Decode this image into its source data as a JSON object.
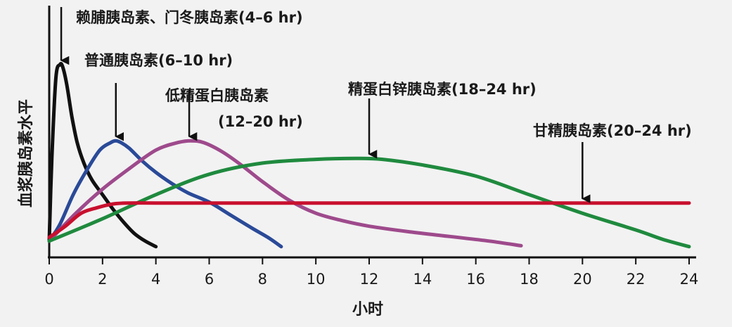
{
  "chart_data": {
    "type": "line",
    "title": "",
    "xlabel": "小时",
    "ylabel": "血浆胰岛素水平",
    "xlim": [
      0,
      24
    ],
    "xticks": [
      0,
      2,
      4,
      6,
      8,
      10,
      12,
      14,
      16,
      18,
      20,
      22,
      24
    ],
    "ylim": [
      0,
      1
    ],
    "grid": false,
    "series": [
      {
        "name": "赖脯胰岛素、门冬胰岛素(4-6 hr)",
        "color": "#111111",
        "x": [
          0,
          0.1,
          0.25,
          0.4,
          0.5,
          0.65,
          0.85,
          1.05,
          1.3,
          1.6,
          2.0,
          2.4,
          2.8,
          3.2,
          3.6,
          4.0
        ],
        "y": [
          0.05,
          0.5,
          0.93,
          1.0,
          0.99,
          0.9,
          0.72,
          0.58,
          0.47,
          0.38,
          0.3,
          0.22,
          0.15,
          0.09,
          0.05,
          0.02
        ]
      },
      {
        "name": "普通胰岛素(6-10 hr)",
        "color": "#2a4a98",
        "x": [
          0,
          0.4,
          0.9,
          1.4,
          1.9,
          2.3,
          2.5,
          2.7,
          3.0,
          3.5,
          4.0,
          4.6,
          5.2,
          6.0,
          6.8,
          7.6,
          8.2,
          8.7
        ],
        "y": [
          0.05,
          0.14,
          0.3,
          0.43,
          0.54,
          0.58,
          0.59,
          0.58,
          0.55,
          0.48,
          0.42,
          0.36,
          0.31,
          0.26,
          0.19,
          0.12,
          0.07,
          0.02
        ]
      },
      {
        "name": "低精蛋白胰岛素(12-20 hr)",
        "color": "#9e4a8c",
        "x": [
          0,
          1.0,
          2.0,
          3.0,
          4.0,
          4.8,
          5.3,
          5.8,
          6.5,
          7.2,
          8.0,
          9.0,
          10.0,
          11.0,
          12.0,
          13.5,
          15.0,
          16.5,
          17.7
        ],
        "y": [
          0.05,
          0.2,
          0.33,
          0.44,
          0.54,
          0.58,
          0.59,
          0.58,
          0.53,
          0.46,
          0.37,
          0.27,
          0.2,
          0.16,
          0.13,
          0.1,
          0.075,
          0.05,
          0.025
        ]
      },
      {
        "name": "精蛋白锌胰岛素(18-24 hr)",
        "color": "#1f8a3e",
        "x": [
          0,
          2,
          4,
          6,
          8,
          10,
          11.5,
          12.5,
          14,
          16,
          18,
          20,
          22,
          23,
          24
        ],
        "y": [
          0.05,
          0.17,
          0.3,
          0.41,
          0.47,
          0.49,
          0.495,
          0.49,
          0.46,
          0.4,
          0.3,
          0.2,
          0.11,
          0.06,
          0.02
        ]
      },
      {
        "name": "甘精胰岛素(20-24 hr)",
        "color": "#c8102e",
        "x": [
          0,
          0.6,
          1.2,
          1.8,
          2.4,
          3.0,
          4,
          6,
          10,
          14,
          18,
          22,
          24
        ],
        "y": [
          0.07,
          0.13,
          0.2,
          0.23,
          0.25,
          0.255,
          0.255,
          0.255,
          0.255,
          0.255,
          0.255,
          0.255,
          0.255
        ]
      }
    ],
    "annotations": [
      {
        "id": "a0",
        "line1": "赖脯胰岛素、门冬胰岛素(4–6 hr)",
        "line2": "",
        "arrow_x": 0.45,
        "arrow_to_y": 1.0
      },
      {
        "id": "a1",
        "line1": "普通胰岛素(6–10 hr)",
        "line2": "",
        "arrow_x": 2.5,
        "arrow_to_y": 0.59
      },
      {
        "id": "a2",
        "line1": "低精蛋白胰岛素",
        "line2": "(12–20 hr)",
        "arrow_x": 5.25,
        "arrow_to_y": 0.59
      },
      {
        "id": "a3",
        "line1": "精蛋白锌胰岛素(18–24 hr)",
        "line2": "",
        "arrow_x": 12.0,
        "arrow_to_y": 0.495
      },
      {
        "id": "a4",
        "line1": "甘精胰岛素(20–24 hr)",
        "line2": "",
        "arrow_x": 20.0,
        "arrow_to_y": 0.255
      }
    ]
  }
}
